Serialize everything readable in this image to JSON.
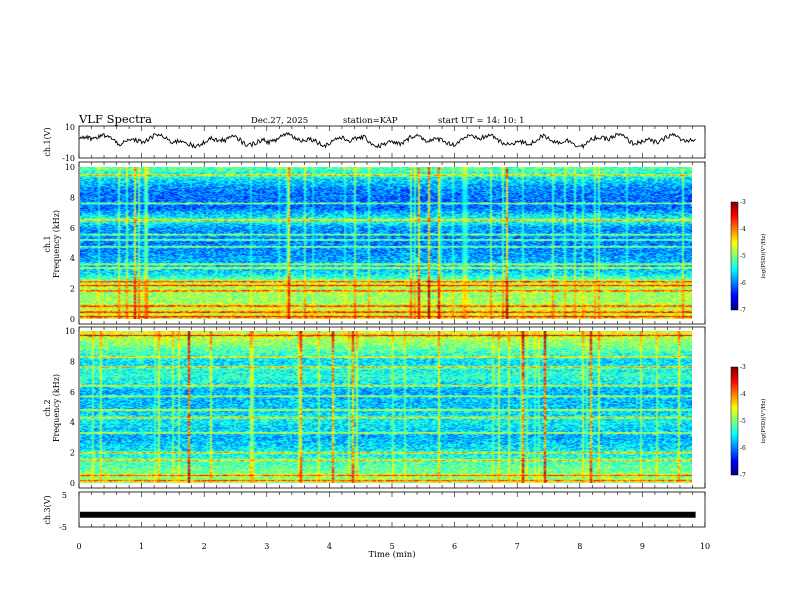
{
  "header": {
    "title": "VLF Spectra",
    "date": "Dec.27, 2025",
    "station": "station=KAP",
    "start_ut": "start  UT =   14: 10: 1"
  },
  "chart_data": [
    {
      "type": "line",
      "name": "ch1-waveform",
      "ylabel": "ch.1(V)",
      "ylim": [
        -10,
        10
      ],
      "yticks": [
        "10",
        "-10"
      ],
      "xlim": [
        0,
        10
      ],
      "note": "noisy waveform oscillating roughly between -4 and 6 V"
    },
    {
      "type": "heatmap",
      "name": "ch1-spectrogram",
      "ylabel_line1": "ch.1",
      "ylabel_line2": "Frequency (kHz)",
      "ylim": [
        0,
        10
      ],
      "yticks": [
        "0",
        "2",
        "4",
        "6",
        "8",
        "10"
      ],
      "xlim": [
        0,
        9.85
      ],
      "colorbar": {
        "label": "log(PSD)(V²/Hz)",
        "range": [
          -7,
          -3
        ],
        "ticks": [
          "-3",
          "-4",
          "-5",
          "-6",
          "-7"
        ]
      },
      "bands": [
        0.15,
        0.45,
        0.85,
        1.85,
        2.2,
        2.45,
        3.35,
        3.6,
        4.75,
        5.2,
        5.55,
        6.5,
        7.6,
        9.45
      ],
      "profile": [
        [
          0,
          -4.6
        ],
        [
          0.8,
          -4.7
        ],
        [
          1.2,
          -4.9
        ],
        [
          2.4,
          -4.8
        ],
        [
          3.0,
          -5.6
        ],
        [
          4.2,
          -5.9
        ],
        [
          5.0,
          -6.0
        ],
        [
          6.0,
          -5.9
        ],
        [
          6.5,
          -5.3
        ],
        [
          7.3,
          -6.1
        ],
        [
          8.5,
          -6.0
        ],
        [
          9.5,
          -5.4
        ],
        [
          10,
          -5.1
        ]
      ]
    },
    {
      "type": "heatmap",
      "name": "ch2-spectrogram",
      "ylabel_line1": "ch.2",
      "ylabel_line2": "Frequency (kHz)",
      "ylim": [
        0,
        10
      ],
      "yticks": [
        "0",
        "2",
        "4",
        "6",
        "8",
        "10"
      ],
      "xlim": [
        0,
        9.85
      ],
      "colorbar": {
        "label": "log(PSD)(V²/Hz)",
        "range": [
          -7,
          -3
        ],
        "ticks": [
          "-3",
          "-4",
          "-5",
          "-6",
          "-7"
        ]
      },
      "bands": [
        0.15,
        0.5,
        1.5,
        2.0,
        3.3,
        4.3,
        4.8,
        5.7,
        6.4,
        7.6,
        8.3,
        9.7
      ],
      "profile": [
        [
          0,
          -4.9
        ],
        [
          1.0,
          -5.1
        ],
        [
          2.0,
          -5.5
        ],
        [
          3.0,
          -5.8
        ],
        [
          4.0,
          -5.5
        ],
        [
          5.0,
          -5.7
        ],
        [
          6.0,
          -5.8
        ],
        [
          7.0,
          -5.3
        ],
        [
          8.0,
          -5.6
        ],
        [
          9.0,
          -5.0
        ],
        [
          10,
          -4.6
        ]
      ]
    },
    {
      "type": "line",
      "name": "ch3-waveform",
      "ylabel": "ch.3(V)",
      "ylim": [
        -5,
        5
      ],
      "yticks": [
        "5",
        "-5"
      ],
      "xlim": [
        0,
        10
      ],
      "note": "flat thick line near -1.5 V"
    }
  ],
  "xaxis": {
    "label": "Time  (min)",
    "ticks": [
      "0",
      "1",
      "2",
      "3",
      "4",
      "5",
      "6",
      "7",
      "8",
      "9",
      "10"
    ],
    "range": [
      0,
      10
    ]
  }
}
